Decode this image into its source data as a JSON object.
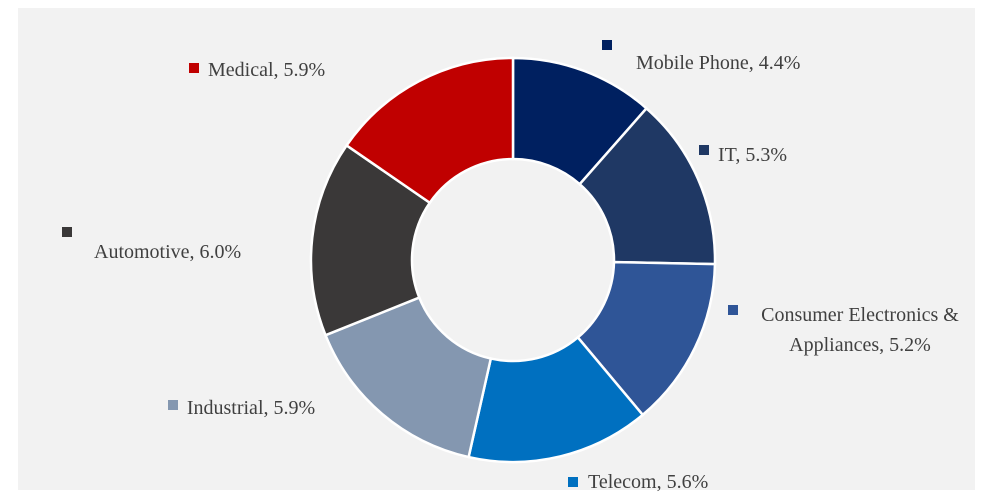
{
  "chart_data": {
    "type": "donut",
    "values": [
      4.4,
      5.3,
      5.2,
      5.6,
      5.9,
      6.0,
      5.9
    ],
    "value_labels": [
      "Mobile Phone, 4.4%",
      "IT, 5.3%",
      "Consumer Electronics & Appliances, 5.2%",
      "Telecom, 5.6%",
      "Industrial, 5.9%",
      "Automotive, 6.0%",
      "Medical, 5.9%"
    ],
    "colors": [
      "#002060",
      "#1f3864",
      "#2f5597",
      "#0070c0",
      "#8497b0",
      "#3a3838",
      "#c00000"
    ]
  }
}
